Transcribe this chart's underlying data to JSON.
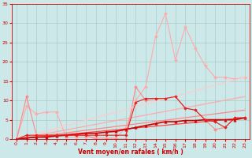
{
  "xlabel": "Vent moyen/en rafales ( km/h )",
  "background_color": "#cce8e8",
  "grid_color": "#aacccc",
  "xlim": [
    -0.5,
    23.5
  ],
  "ylim": [
    0,
    35
  ],
  "yticks": [
    0,
    5,
    10,
    15,
    20,
    25,
    30,
    35
  ],
  "xticks": [
    0,
    1,
    2,
    3,
    4,
    5,
    6,
    7,
    8,
    9,
    10,
    11,
    12,
    13,
    14,
    15,
    16,
    17,
    18,
    19,
    20,
    21,
    22,
    23
  ],
  "lines": [
    {
      "x": [
        0,
        1,
        2,
        3,
        4,
        5,
        6,
        7,
        8,
        9,
        10,
        11,
        12,
        13,
        14,
        15,
        16,
        17,
        18,
        19,
        20,
        21,
        22,
        23
      ],
      "y": [
        0,
        8.5,
        6.5,
        7.0,
        7.0,
        0.5,
        0.5,
        0.5,
        0.5,
        0.3,
        0.3,
        3.0,
        10,
        13.5,
        26.5,
        32.5,
        20.5,
        29,
        23.5,
        19,
        16,
        16,
        15.5,
        16
      ],
      "color": "#ffaaaa",
      "lw": 0.8,
      "marker": "D",
      "ms": 2.0
    },
    {
      "x": [
        0,
        1,
        2,
        3,
        4,
        5,
        6,
        7,
        8,
        9,
        10,
        11,
        12,
        13,
        14,
        15,
        16,
        17,
        18,
        19,
        20,
        21,
        22,
        23
      ],
      "y": [
        0,
        11,
        1,
        0.5,
        1,
        1,
        1,
        1,
        0,
        0,
        0,
        0,
        13.5,
        10,
        10.5,
        10.5,
        11,
        8,
        7.5,
        5,
        2.5,
        3,
        5.5,
        5.5
      ],
      "color": "#ff8888",
      "lw": 0.8,
      "marker": "D",
      "ms": 2.0
    },
    {
      "x": [
        0,
        23
      ],
      "y": [
        0,
        16
      ],
      "color": "#ffcccc",
      "lw": 0.9,
      "marker": null,
      "ms": 0
    },
    {
      "x": [
        0,
        23
      ],
      "y": [
        0,
        11
      ],
      "color": "#ffaaaa",
      "lw": 0.9,
      "marker": null,
      "ms": 0
    },
    {
      "x": [
        0,
        23
      ],
      "y": [
        0,
        7.5
      ],
      "color": "#ff8888",
      "lw": 0.9,
      "marker": null,
      "ms": 0
    },
    {
      "x": [
        0,
        23
      ],
      "y": [
        0,
        5.5
      ],
      "color": "#ff4444",
      "lw": 0.9,
      "marker": null,
      "ms": 0
    },
    {
      "x": [
        0,
        1,
        2,
        3,
        4,
        5,
        6,
        7,
        8,
        9,
        10,
        11,
        12,
        13,
        14,
        15,
        16,
        17,
        18,
        19,
        20,
        21,
        22,
        23
      ],
      "y": [
        0,
        0.3,
        0.5,
        0.5,
        0.8,
        1.0,
        1.2,
        1.5,
        1.5,
        1.8,
        2.0,
        2.5,
        3.0,
        3.5,
        4.0,
        4.5,
        4.5,
        4.8,
        4.8,
        5.0,
        5.0,
        5.0,
        5.0,
        5.5
      ],
      "color": "#cc0000",
      "lw": 1.2,
      "marker": "^",
      "ms": 2.5
    },
    {
      "x": [
        0,
        1,
        2,
        3,
        4,
        5,
        6,
        7,
        8,
        9,
        10,
        11,
        12,
        13,
        14,
        15,
        16,
        17,
        18,
        19,
        20,
        21,
        22,
        23
      ],
      "y": [
        0,
        1,
        1,
        1,
        1,
        1,
        1,
        1,
        1,
        1,
        1,
        1,
        9.5,
        10.5,
        10.5,
        10.5,
        11,
        8,
        7.5,
        5,
        4.5,
        3,
        5.5,
        5.5
      ],
      "color": "#dd2222",
      "lw": 0.8,
      "marker": "D",
      "ms": 1.8
    }
  ]
}
